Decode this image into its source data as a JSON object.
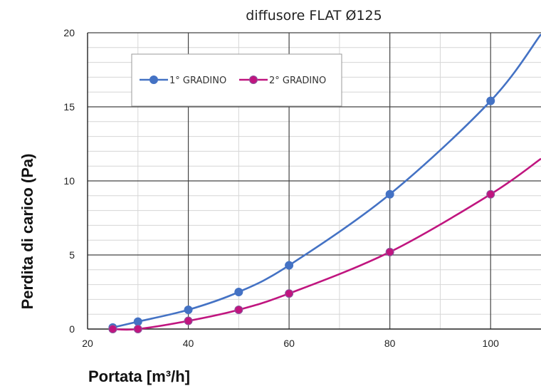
{
  "chart_data": {
    "type": "line",
    "title": "diffusore FLAT Ø125",
    "xlabel": "Portata [m³/h]",
    "ylabel": "Perdita di carico  (Pa)",
    "xlim": [
      20,
      110
    ],
    "ylim": [
      0,
      20
    ],
    "x_ticks": [
      "20",
      "40",
      "60",
      "80",
      "100"
    ],
    "y_ticks": [
      "0",
      "5",
      "10",
      "15",
      "20"
    ],
    "grid": "on",
    "legend_position": "top-left",
    "series": [
      {
        "name": "1° GRADINO",
        "color": "#4472c4",
        "points": [
          {
            "x": 25,
            "y": 0.1
          },
          {
            "x": 30,
            "y": 0.5
          },
          {
            "x": 40,
            "y": 1.3
          },
          {
            "x": 50,
            "y": 2.5
          },
          {
            "x": 60,
            "y": 4.3
          },
          {
            "x": 80,
            "y": 9.1
          },
          {
            "x": 100,
            "y": 15.4
          }
        ],
        "curve_end": {
          "x": 110,
          "y": 19.9
        }
      },
      {
        "name": "2° GRADINO",
        "color": "#c0157f",
        "points": [
          {
            "x": 25,
            "y": 0
          },
          {
            "x": 30,
            "y": 0
          },
          {
            "x": 40,
            "y": 0.55
          },
          {
            "x": 50,
            "y": 1.3
          },
          {
            "x": 60,
            "y": 2.4
          },
          {
            "x": 80,
            "y": 5.2
          },
          {
            "x": 100,
            "y": 9.1
          }
        ],
        "curve_end": {
          "x": 110,
          "y": 11.5
        }
      }
    ]
  }
}
